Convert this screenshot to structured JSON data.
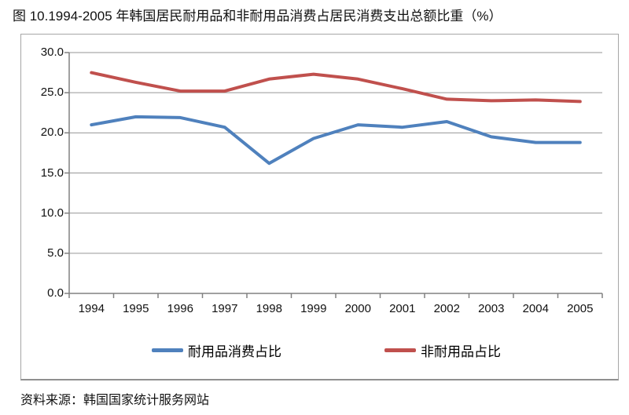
{
  "page": {
    "title": "图 10.1994-2005 年韩国居民耐用品和非耐用品消费占居民消费支出总额比重（%）",
    "source": "资料来源：韩国国家统计服务网站"
  },
  "chart_data": {
    "type": "line",
    "title": "1994-2005 年韩国居民耐用品和非耐用品消费占居民消费支出总额比重（%）",
    "categories": [
      "1994",
      "1995",
      "1996",
      "1997",
      "1998",
      "1999",
      "2000",
      "2001",
      "2002",
      "2003",
      "2004",
      "2005"
    ],
    "series": [
      {
        "name": "耐用品消费占比",
        "color": "#4F81BD",
        "values": [
          21.0,
          22.0,
          21.9,
          20.7,
          16.2,
          19.3,
          21.0,
          20.7,
          21.4,
          19.5,
          18.8,
          18.8
        ]
      },
      {
        "name": "非耐用品占比",
        "color": "#C0504D",
        "values": [
          27.5,
          26.3,
          25.2,
          25.2,
          26.7,
          27.3,
          26.7,
          25.5,
          24.2,
          24.0,
          24.1,
          23.9
        ]
      }
    ],
    "ylim": [
      0,
      30
    ],
    "ytick_step": 5,
    "ytick_labels": [
      "30.0",
      "25.0",
      "20.0",
      "15.0",
      "10.0",
      "5.0",
      "0.0"
    ],
    "grid": true,
    "legend_position": "bottom",
    "grid_color": "#969696",
    "axis_color": "#808080"
  }
}
